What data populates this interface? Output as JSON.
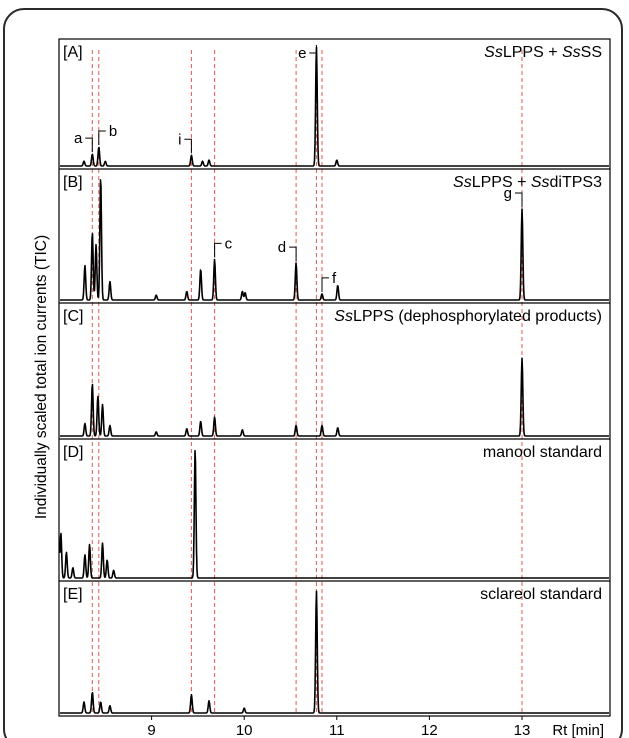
{
  "chart_data": {
    "type": "line",
    "ylabel": "Individually scaled total ion currents (TIC)",
    "xlabel": "Rt [min]",
    "xlim": [
      8.0,
      13.95
    ],
    "x_ticks": [
      9,
      10,
      11,
      12,
      13
    ],
    "reference_lines_rt": [
      8.36,
      8.43,
      9.43,
      9.68,
      10.56,
      10.78,
      10.84,
      13.0
    ],
    "panels": [
      {
        "id": "[A]",
        "caption": [
          "Ss",
          "LPPS + ",
          "Ss",
          "SS"
        ],
        "peaks": [
          {
            "rt": 8.27,
            "h": 0.04
          },
          {
            "rt": 8.36,
            "h": 0.1
          },
          {
            "rt": 8.43,
            "h": 0.16
          },
          {
            "rt": 8.5,
            "h": 0.04
          },
          {
            "rt": 9.43,
            "h": 0.09
          },
          {
            "rt": 9.55,
            "h": 0.04
          },
          {
            "rt": 9.62,
            "h": 0.05
          },
          {
            "rt": 10.78,
            "h": 1.0
          },
          {
            "rt": 11.0,
            "h": 0.05
          }
        ],
        "labels": [
          {
            "text": "a",
            "rt": 8.36
          },
          {
            "text": "b",
            "rt": 8.43
          },
          {
            "text": "i",
            "rt": 9.43
          },
          {
            "text": "e",
            "rt": 10.78
          }
        ]
      },
      {
        "id": "[B]",
        "caption": [
          "Ss",
          "LPPS + ",
          "Ss",
          "diTPS3"
        ],
        "peaks": [
          {
            "rt": 8.28,
            "h": 0.28
          },
          {
            "rt": 8.36,
            "h": 0.55
          },
          {
            "rt": 8.4,
            "h": 0.45
          },
          {
            "rt": 8.45,
            "h": 1.0
          },
          {
            "rt": 8.55,
            "h": 0.15
          },
          {
            "rt": 9.05,
            "h": 0.04
          },
          {
            "rt": 9.38,
            "h": 0.07
          },
          {
            "rt": 9.53,
            "h": 0.25
          },
          {
            "rt": 9.68,
            "h": 0.33
          },
          {
            "rt": 9.98,
            "h": 0.07
          },
          {
            "rt": 10.01,
            "h": 0.06
          },
          {
            "rt": 10.56,
            "h": 0.3
          },
          {
            "rt": 10.84,
            "h": 0.05
          },
          {
            "rt": 11.01,
            "h": 0.12
          },
          {
            "rt": 13.0,
            "h": 0.74
          }
        ],
        "labels": [
          {
            "text": "c",
            "rt": 9.68
          },
          {
            "text": "d",
            "rt": 10.56
          },
          {
            "text": "f",
            "rt": 10.84
          },
          {
            "text": "g",
            "rt": 13.0
          }
        ]
      },
      {
        "id": "[C]",
        "caption": [
          "Ss",
          "LPPS (dephosphorylated products)"
        ],
        "peaks": [
          {
            "rt": 8.28,
            "h": 0.12
          },
          {
            "rt": 8.36,
            "h": 0.5
          },
          {
            "rt": 8.42,
            "h": 0.38
          },
          {
            "rt": 8.47,
            "h": 0.3
          },
          {
            "rt": 8.55,
            "h": 0.1
          },
          {
            "rt": 9.05,
            "h": 0.04
          },
          {
            "rt": 9.38,
            "h": 0.07
          },
          {
            "rt": 9.53,
            "h": 0.14
          },
          {
            "rt": 9.68,
            "h": 0.18
          },
          {
            "rt": 9.98,
            "h": 0.06
          },
          {
            "rt": 10.56,
            "h": 0.1
          },
          {
            "rt": 10.84,
            "h": 0.1
          },
          {
            "rt": 11.01,
            "h": 0.08
          },
          {
            "rt": 13.0,
            "h": 0.74
          }
        ],
        "labels": []
      },
      {
        "id": "[D]",
        "caption": [
          "manool standard"
        ],
        "peaks": [
          {
            "rt": 8.02,
            "h": 0.35
          },
          {
            "rt": 8.08,
            "h": 0.2
          },
          {
            "rt": 8.15,
            "h": 0.08
          },
          {
            "rt": 8.28,
            "h": 0.18
          },
          {
            "rt": 8.33,
            "h": 0.26
          },
          {
            "rt": 8.47,
            "h": 0.27
          },
          {
            "rt": 8.52,
            "h": 0.14
          },
          {
            "rt": 8.59,
            "h": 0.06
          },
          {
            "rt": 9.47,
            "h": 1.0
          }
        ],
        "labels": []
      },
      {
        "id": "[E]",
        "caption": [
          "sclareol standard"
        ],
        "peaks": [
          {
            "rt": 8.27,
            "h": 0.09
          },
          {
            "rt": 8.36,
            "h": 0.17
          },
          {
            "rt": 8.45,
            "h": 0.09
          },
          {
            "rt": 8.55,
            "h": 0.06
          },
          {
            "rt": 9.43,
            "h": 0.15
          },
          {
            "rt": 9.62,
            "h": 0.1
          },
          {
            "rt": 10.0,
            "h": 0.04
          },
          {
            "rt": 10.78,
            "h": 1.0
          }
        ],
        "labels": []
      }
    ]
  }
}
